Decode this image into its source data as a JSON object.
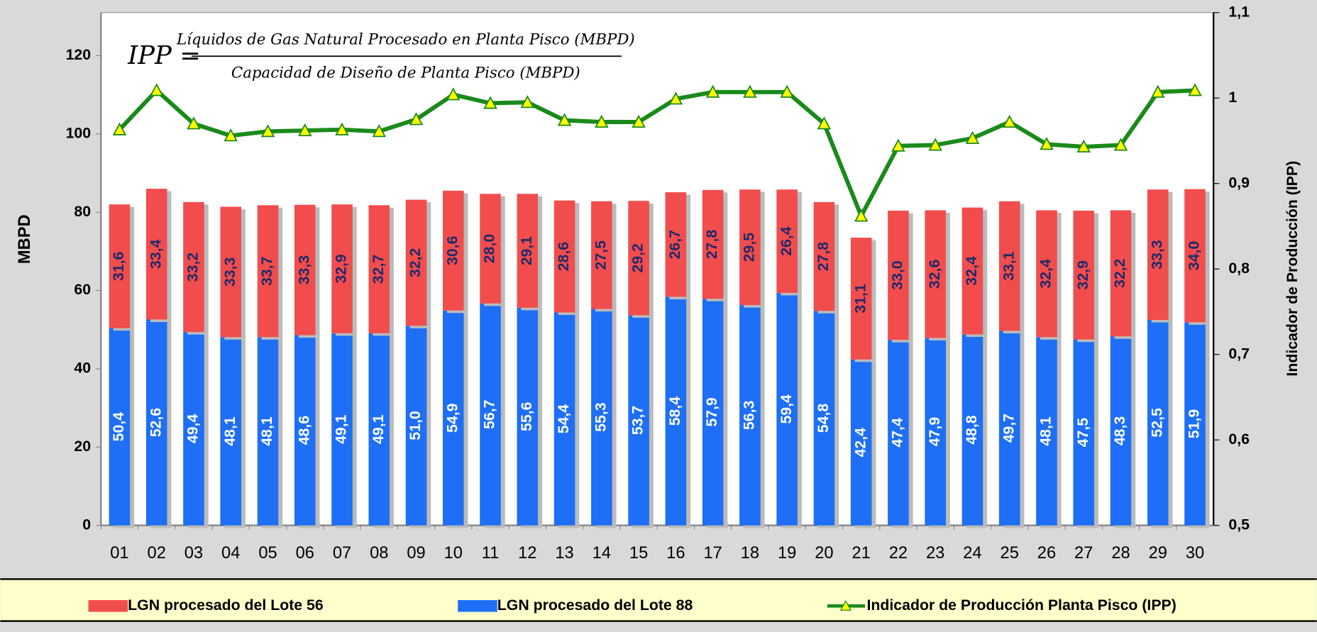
{
  "chart_data": {
    "type": "bar",
    "stacked": true,
    "annotations": {
      "lhs": "IPP =",
      "numerator": "Líquidos de Gas Natural Procesado en Planta Pisco (MBPD)",
      "denominator": "Capacidad de Diseño de Planta Pisco (MBPD)"
    },
    "ylabel": "MBPD",
    "y2label": "Indicador de Producción (IPP)",
    "categories": [
      "01",
      "02",
      "03",
      "04",
      "05",
      "06",
      "07",
      "08",
      "09",
      "10",
      "11",
      "12",
      "13",
      "14",
      "15",
      "16",
      "17",
      "18",
      "19",
      "20",
      "21",
      "22",
      "23",
      "24",
      "25",
      "26",
      "27",
      "28",
      "29",
      "30"
    ],
    "series": [
      {
        "name": "LGN procesado del Lote 56",
        "color": "#f24d4d",
        "label_color": "#1f2a6b",
        "values": [
          31.6,
          33.4,
          33.2,
          33.3,
          33.7,
          33.3,
          32.9,
          32.7,
          32.2,
          30.6,
          28,
          29.1,
          28.6,
          27.5,
          29.2,
          26.7,
          27.8,
          29.5,
          26.4,
          27.8,
          31.1,
          33,
          32.6,
          32.4,
          33.1,
          32.4,
          32.9,
          32.2,
          33.3,
          34
        ],
        "value_labels": [
          "31,6",
          "33,4",
          "33,2",
          "33,3",
          "33,7",
          "33,3",
          "32,9",
          "32,7",
          "32,2",
          "30,6",
          "28,0",
          "29,1",
          "28,6",
          "27,5",
          "29,2",
          "26,7",
          "27,8",
          "29,5",
          "26,4",
          "27,8",
          "31,1",
          "33,0",
          "32,6",
          "32,4",
          "33,1",
          "32,4",
          "32,9",
          "32,2",
          "33,3",
          "34,0"
        ]
      },
      {
        "name": "LGN procesado del Lote 88",
        "color": "#1e6ff5",
        "label_color": "#ffffff",
        "values": [
          50.4,
          52.6,
          49.4,
          48.1,
          48.1,
          48.6,
          49.1,
          49.1,
          51,
          54.9,
          56.7,
          55.6,
          54.4,
          55.3,
          53.7,
          58.4,
          57.9,
          56.3,
          59.4,
          54.8,
          42.4,
          47.4,
          47.9,
          48.8,
          49.7,
          48.1,
          47.5,
          48.3,
          52.5,
          51.9
        ],
        "value_labels": [
          "50,4",
          "52,6",
          "49,4",
          "48,1",
          "48,1",
          "48,6",
          "49,1",
          "49,1",
          "51,0",
          "54,9",
          "56,7",
          "55,6",
          "54,4",
          "55,3",
          "53,7",
          "58,4",
          "57,9",
          "56,3",
          "59,4",
          "54,8",
          "42,4",
          "47,4",
          "47,9",
          "48,8",
          "49,7",
          "48,1",
          "47,5",
          "48,3",
          "52,5",
          "51,9"
        ]
      },
      {
        "name": "Indicador de Producción Planta Pisco (IPP)",
        "type": "line",
        "axis": "y2",
        "color": "#1a8a1a",
        "marker_color": "#ffff00",
        "values": [
          0.963,
          1.009,
          0.97,
          0.956,
          0.961,
          0.962,
          0.963,
          0.961,
          0.975,
          1.004,
          0.994,
          0.995,
          0.974,
          0.972,
          0.972,
          0.999,
          1.007,
          1.007,
          1.007,
          0.97,
          0.862,
          0.944,
          0.945,
          0.953,
          0.972,
          0.946,
          0.943,
          0.945,
          1.007,
          1.009
        ]
      }
    ],
    "ylim": [
      0,
      131
    ],
    "yticks": [
      0,
      20,
      40,
      60,
      80,
      100,
      120
    ],
    "y2lim": [
      0.5,
      1.1
    ],
    "y2ticks": [
      {
        "value": 0.5,
        "label": "0,5"
      },
      {
        "value": 0.6,
        "label": "0,6"
      },
      {
        "value": 0.7,
        "label": "0,7"
      },
      {
        "value": 0.8,
        "label": "0,8"
      },
      {
        "value": 0.9,
        "label": "0,9"
      },
      1,
      {
        "value": 1.1,
        "label": "1,1"
      }
    ],
    "grid": false
  }
}
